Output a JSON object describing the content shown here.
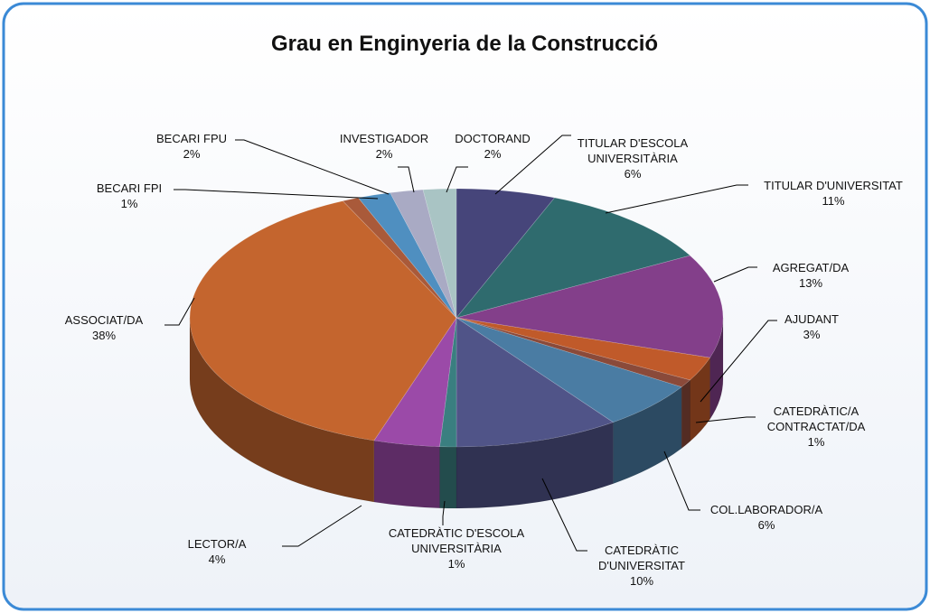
{
  "chart_data": {
    "type": "pie",
    "title": "Grau en Enginyeria de la Construcció",
    "categories": [
      "TITULAR D'ESCOLA UNIVERSITÀRIA",
      "TITULAR D'UNIVERSITAT",
      "AGREGAT/DA",
      "AJUDANT",
      "CATEDRÀTIC/A CONTRACTAT/DA",
      "COL.LABORADOR/A",
      "CATEDRÀTIC D'UNIVERSITAT",
      "CATEDRÀTIC D'ESCOLA UNIVERSITÀRIA",
      "LECTOR/A",
      "ASSOCIAT/DA",
      "BECARI FPI",
      "BECARI FPU",
      "INVESTIGADOR",
      "DOCTORAND"
    ],
    "values": [
      6,
      11,
      13,
      3,
      1,
      6,
      10,
      1,
      4,
      38,
      1,
      2,
      2,
      2
    ],
    "value_labels": [
      "6%",
      "11%",
      "13%",
      "3%",
      "1%",
      "6%",
      "10%",
      "1%",
      "4%",
      "38%",
      "1%",
      "2%",
      "2%",
      "2%"
    ],
    "colors": [
      "#46457a",
      "#2f6b6e",
      "#833f8a",
      "#c05a2a",
      "#8a4a3a",
      "#4a7ca3",
      "#505488",
      "#3a7f80",
      "#9b4aa8",
      "#c4652e",
      "#a95a3a",
      "#4f8fc0",
      "#a9aac4",
      "#a9c4c4"
    ]
  }
}
